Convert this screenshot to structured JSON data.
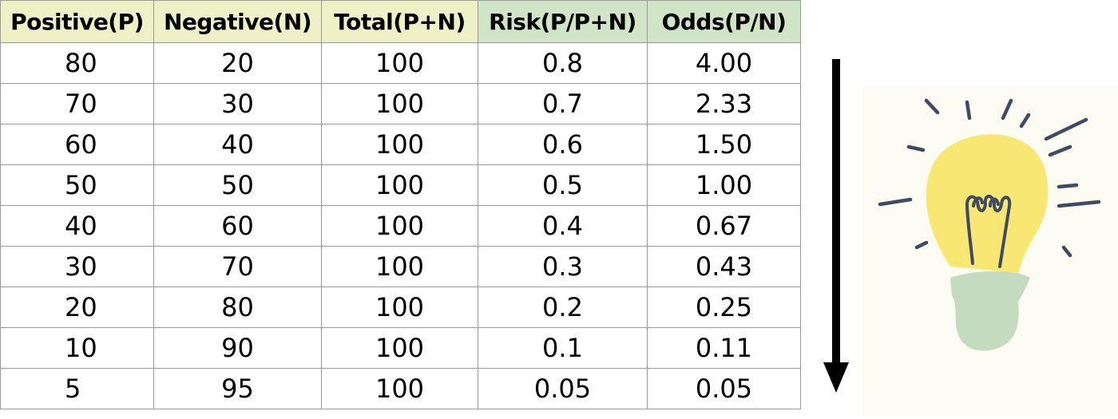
{
  "table": {
    "headers": [
      "Positive(P)",
      "Negative(N)",
      "Total(P+N)",
      "Risk(P/P+N)",
      "Odds(P/N)"
    ],
    "rows": [
      [
        "80",
        "20",
        "100",
        "0.8",
        "4.00"
      ],
      [
        "70",
        "30",
        "100",
        "0.7",
        "2.33"
      ],
      [
        "60",
        "40",
        "100",
        "0.6",
        "1.50"
      ],
      [
        "50",
        "50",
        "100",
        "0.5",
        "1.00"
      ],
      [
        "40",
        "60",
        "100",
        "0.4",
        "0.67"
      ],
      [
        "30",
        "70",
        "100",
        "0.3",
        "0.43"
      ],
      [
        "20",
        "80",
        "100",
        "0.2",
        "0.25"
      ],
      [
        "10",
        "90",
        "100",
        "0.1",
        "0.11"
      ],
      [
        "5",
        "95",
        "100",
        "0.05",
        "0.05"
      ]
    ]
  },
  "colors": {
    "header_yellow": "#eef0c6",
    "header_green": "#cfe5c6",
    "bulb_yellow": "#f8e873",
    "bulb_base_green": "#c5dbbf",
    "bulb_lines": "#3f4a63",
    "arrow": "#000000"
  },
  "icons": {
    "arrow": "down-arrow-icon",
    "bulb": "lightbulb-icon"
  }
}
